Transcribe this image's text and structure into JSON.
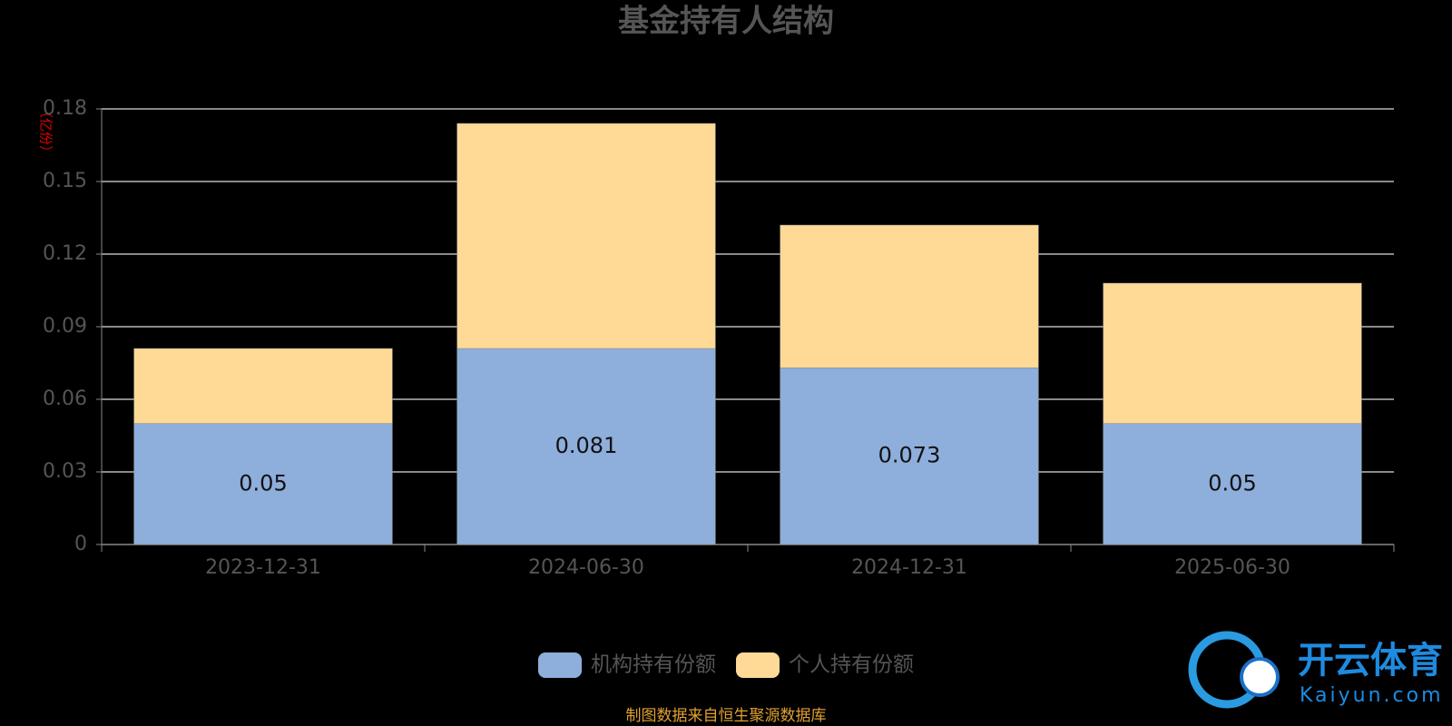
{
  "chart_data": {
    "type": "stacked-bar",
    "title": "基金持有人结构",
    "y_axis_label": "（亿份）",
    "categories": [
      "2023-12-31",
      "2024-06-30",
      "2024-12-31",
      "2025-06-30"
    ],
    "series": [
      {
        "name": "机构持有份额",
        "color": "#8eaedb",
        "values": [
          0.05,
          0.081,
          0.073,
          0.05
        ],
        "show_labels": true
      },
      {
        "name": "个人持有份额",
        "color": "#ffd996",
        "values": [
          0.031,
          0.093,
          0.059,
          0.058
        ],
        "show_labels": false
      }
    ],
    "ylim": [
      0,
      0.18
    ],
    "yticks": [
      0,
      0.03,
      0.06,
      0.09,
      0.12,
      0.15,
      0.18
    ],
    "grid": true,
    "legend": "bottom",
    "source": "制图数据来自恒生聚源数据库"
  },
  "watermark": {
    "name": "开云体育",
    "url": "Kaiyun.com"
  }
}
